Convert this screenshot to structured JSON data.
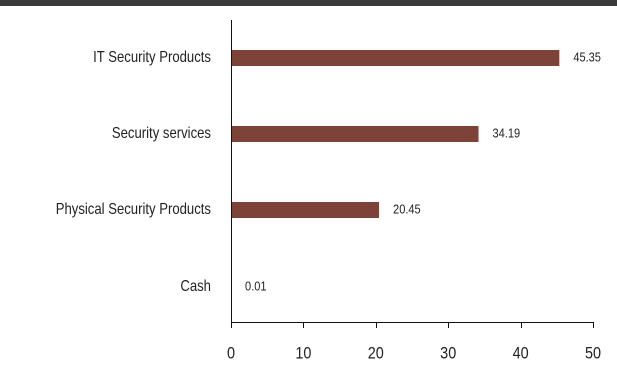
{
  "chart_data": {
    "type": "bar",
    "orientation": "horizontal",
    "categories": [
      "IT Security Products",
      "Security services",
      "Physical Security Products",
      "Cash"
    ],
    "values": [
      45.35,
      34.19,
      20.45,
      0.01
    ],
    "value_labels": [
      "45.35",
      "34.19",
      "20.45",
      "0.01"
    ],
    "title": "",
    "xlabel": "",
    "ylabel": "",
    "xlim": [
      0,
      50
    ],
    "x_ticks": [
      0,
      10,
      20,
      30,
      40,
      50
    ],
    "grid": false,
    "legend": "none",
    "colors": {
      "bar": "#7d4338",
      "axis": "#111111",
      "text": "#222222",
      "top_rule": "#3b3b3b"
    }
  }
}
